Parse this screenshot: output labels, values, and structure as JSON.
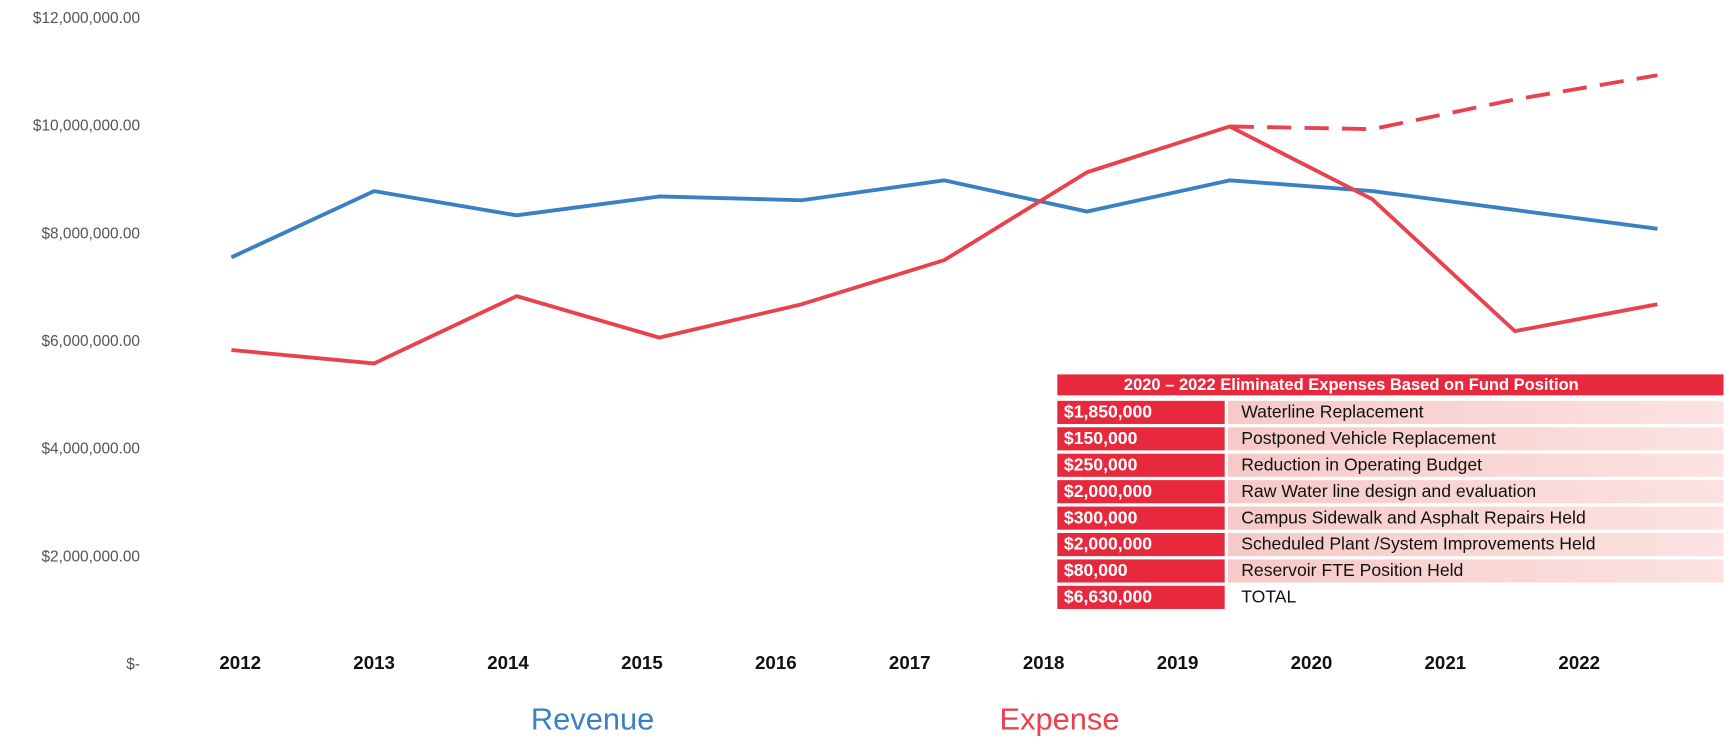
{
  "chart_data": {
    "type": "line",
    "categories": [
      "2012",
      "2013",
      "2014",
      "2015",
      "2016",
      "2017",
      "2018",
      "2019",
      "2020",
      "2021",
      "2022"
    ],
    "series": [
      {
        "name": "Revenue",
        "color": "#3b80c3",
        "values": [
          7570000,
          8800000,
          8350000,
          8700000,
          8630000,
          9000000,
          8420000,
          9000000,
          8800000,
          8450000,
          8100000
        ]
      },
      {
        "name": "Expense",
        "color": "#e8424f",
        "values": [
          5850000,
          5600000,
          6850000,
          6080000,
          6700000,
          7520000,
          9150000,
          10000000,
          8650000,
          6200000,
          6700000
        ]
      },
      {
        "color": "#e8424f",
        "dashed": true,
        "values": [
          null,
          null,
          null,
          null,
          null,
          null,
          null,
          10000000,
          9950000,
          10500000,
          10950000
        ]
      }
    ],
    "ylim": [
      0,
      12000000
    ],
    "yticks": [
      {
        "value": 0,
        "label": "$-"
      },
      {
        "value": 2000000,
        "label": "$2,000,000.00"
      },
      {
        "value": 4000000,
        "label": "$4,000,000.00"
      },
      {
        "value": 6000000,
        "label": "$6,000,000.00"
      },
      {
        "value": 8000000,
        "label": "$8,000,000.00"
      },
      {
        "value": 10000000,
        "label": "$10,000,000.00"
      },
      {
        "value": 12000000,
        "label": "$12,000,000.00"
      }
    ],
    "grid": false
  },
  "table": {
    "title": "2020 – 2022 Eliminated Expenses Based on Fund Position",
    "rows": [
      [
        "$1,850,000",
        "Waterline Replacement"
      ],
      [
        "$150,000",
        "Postponed Vehicle Replacement"
      ],
      [
        "$250,000",
        "Reduction in Operating Budget"
      ],
      [
        "$2,000,000",
        "Raw Water line design and evaluation"
      ],
      [
        "$300,000",
        "Campus Sidewalk and Asphalt Repairs Held"
      ],
      [
        "$2,000,000",
        "Scheduled Plant /System Improvements Held"
      ],
      [
        "$80,000",
        "Reservoir FTE Position Held"
      ],
      [
        "$6,630,000",
        "TOTAL"
      ]
    ]
  }
}
